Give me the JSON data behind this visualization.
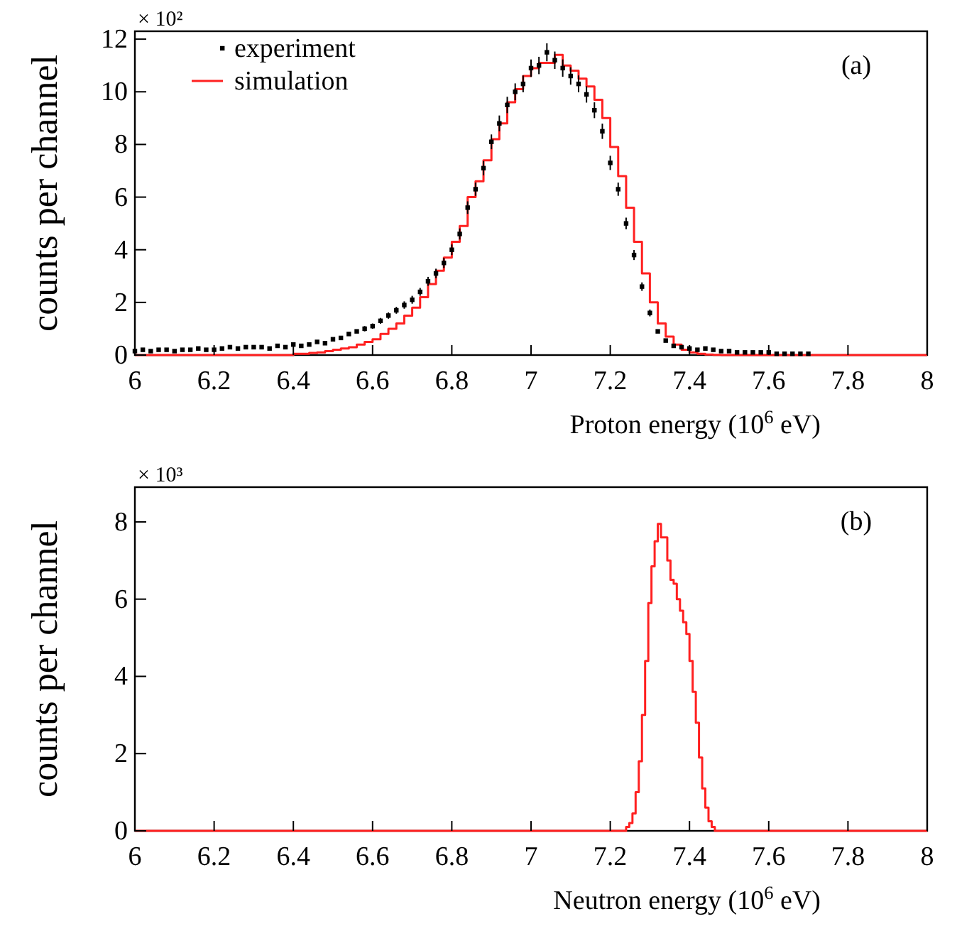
{
  "chart_data": [
    {
      "type": "scatter",
      "xlabel": "Proton energy (10$^{6}$ eV)",
      "ylabel": "counts per channel",
      "xlim": [
        6,
        8
      ],
      "ylim": [
        0,
        12.3
      ],
      "xticks": [
        6,
        6.2,
        6.4,
        6.6,
        6.8,
        7,
        7.2,
        7.4,
        7.6,
        7.8,
        8
      ],
      "yticks": [
        0,
        2,
        4,
        6,
        8,
        10,
        12
      ],
      "legend": "top left",
      "grid": false,
      "annotations": [
        "(a)",
        "× 10²"
      ],
      "series": [
        {
          "name": "experiment",
          "marker": "square",
          "color": "#000000",
          "x": [
            6.0,
            6.02,
            6.04,
            6.06,
            6.08,
            6.1,
            6.12,
            6.14,
            6.16,
            6.18,
            6.2,
            6.22,
            6.24,
            6.26,
            6.28,
            6.3,
            6.32,
            6.34,
            6.36,
            6.38,
            6.4,
            6.42,
            6.44,
            6.46,
            6.48,
            6.5,
            6.52,
            6.54,
            6.56,
            6.58,
            6.6,
            6.62,
            6.64,
            6.66,
            6.68,
            6.7,
            6.72,
            6.74,
            6.76,
            6.78,
            6.8,
            6.82,
            6.84,
            6.86,
            6.88,
            6.9,
            6.92,
            6.94,
            6.96,
            6.98,
            7.0,
            7.02,
            7.04,
            7.06,
            7.08,
            7.1,
            7.12,
            7.14,
            7.16,
            7.18,
            7.2,
            7.22,
            7.24,
            7.26,
            7.28,
            7.3,
            7.32,
            7.34,
            7.36,
            7.38,
            7.4,
            7.42,
            7.44,
            7.46,
            7.48,
            7.5,
            7.52,
            7.54,
            7.56,
            7.58,
            7.6,
            7.62,
            7.64,
            7.66,
            7.68,
            7.7
          ],
          "values": [
            0.15,
            0.2,
            0.15,
            0.2,
            0.2,
            0.15,
            0.2,
            0.2,
            0.25,
            0.2,
            0.2,
            0.25,
            0.3,
            0.25,
            0.3,
            0.3,
            0.3,
            0.25,
            0.35,
            0.3,
            0.4,
            0.35,
            0.4,
            0.5,
            0.45,
            0.6,
            0.65,
            0.8,
            0.9,
            1.0,
            1.1,
            1.3,
            1.5,
            1.7,
            1.9,
            2.1,
            2.4,
            2.8,
            3.1,
            3.5,
            4.0,
            4.6,
            5.6,
            6.3,
            7.1,
            8.1,
            8.8,
            9.5,
            10.0,
            10.3,
            10.9,
            11.0,
            11.5,
            11.2,
            10.9,
            10.6,
            10.3,
            9.9,
            9.3,
            8.5,
            7.3,
            6.3,
            5.0,
            3.8,
            2.6,
            1.6,
            0.9,
            0.55,
            0.35,
            0.3,
            0.25,
            0.2,
            0.25,
            0.2,
            0.15,
            0.15,
            0.1,
            0.1,
            0.1,
            0.1,
            0.1,
            0.05,
            0.05,
            0.05,
            0.05,
            0.05
          ],
          "errors": [
            null,
            null,
            null,
            null,
            null,
            null,
            null,
            null,
            null,
            null,
            null,
            null,
            null,
            null,
            null,
            null,
            null,
            null,
            null,
            null,
            null,
            null,
            null,
            null,
            null,
            null,
            null,
            null,
            null,
            0.1,
            0.1,
            0.11,
            0.12,
            0.13,
            0.14,
            0.15,
            0.15,
            0.17,
            0.18,
            0.19,
            0.2,
            0.21,
            0.24,
            0.25,
            0.27,
            0.28,
            0.3,
            0.31,
            0.32,
            0.32,
            0.33,
            0.33,
            0.34,
            0.33,
            0.33,
            0.33,
            0.32,
            0.31,
            0.3,
            0.29,
            0.27,
            0.25,
            0.22,
            0.19,
            0.16,
            0.13,
            null,
            null,
            null,
            null,
            null,
            null,
            null,
            null,
            null,
            null,
            null,
            null,
            null,
            null,
            null,
            null,
            null,
            null,
            null,
            null
          ]
        },
        {
          "name": "simulation",
          "type": "step",
          "color": "#ff2020",
          "x": [
            6.0,
            6.4,
            6.42,
            6.44,
            6.46,
            6.48,
            6.5,
            6.52,
            6.54,
            6.56,
            6.58,
            6.6,
            6.62,
            6.64,
            6.66,
            6.68,
            6.7,
            6.72,
            6.74,
            6.76,
            6.78,
            6.8,
            6.82,
            6.84,
            6.86,
            6.88,
            6.9,
            6.92,
            6.94,
            6.96,
            6.98,
            7.0,
            7.02,
            7.04,
            7.06,
            7.08,
            7.1,
            7.12,
            7.14,
            7.16,
            7.18,
            7.2,
            7.22,
            7.24,
            7.26,
            7.28,
            7.3,
            7.32,
            7.34,
            7.36,
            7.38,
            7.4,
            7.42,
            7.44,
            7.46,
            7.48,
            8.0
          ],
          "values": [
            0,
            0.05,
            0.05,
            0.08,
            0.1,
            0.15,
            0.2,
            0.25,
            0.3,
            0.4,
            0.5,
            0.6,
            0.8,
            1.0,
            1.2,
            1.5,
            1.8,
            2.2,
            2.7,
            3.2,
            3.7,
            4.3,
            4.9,
            6.0,
            6.6,
            7.4,
            8.2,
            8.8,
            9.6,
            10.1,
            10.6,
            10.9,
            11.1,
            11.1,
            11.4,
            11.0,
            10.8,
            10.5,
            10.2,
            9.7,
            9.0,
            7.9,
            6.8,
            5.6,
            4.3,
            3.1,
            2.0,
            1.2,
            0.7,
            0.4,
            0.2,
            0.1,
            0.05,
            0.02,
            0.01,
            0,
            0
          ]
        }
      ]
    },
    {
      "type": "step",
      "xlabel": "Neutron energy (10$^{6}$ eV)",
      "ylabel": "counts per channel",
      "xlim": [
        6,
        8
      ],
      "ylim": [
        0,
        8.9
      ],
      "xticks": [
        6,
        6.2,
        6.4,
        6.6,
        6.8,
        7,
        7.2,
        7.4,
        7.6,
        7.8,
        8
      ],
      "yticks": [
        0,
        2,
        4,
        6,
        8
      ],
      "grid": false,
      "annotations": [
        "(b)",
        "× 10³"
      ],
      "series": [
        {
          "color": "#ff2020",
          "x": [
            6.0,
            7.24,
            7.248,
            7.256,
            7.264,
            7.272,
            7.28,
            7.288,
            7.296,
            7.304,
            7.312,
            7.32,
            7.328,
            7.336,
            7.344,
            7.352,
            7.36,
            7.368,
            7.376,
            7.384,
            7.392,
            7.4,
            7.408,
            7.416,
            7.424,
            7.432,
            7.44,
            7.448,
            7.456,
            7.464,
            8.0
          ],
          "values": [
            0,
            0.1,
            0.2,
            0.45,
            1.0,
            1.8,
            3.0,
            4.4,
            5.9,
            6.85,
            7.5,
            7.95,
            7.6,
            7.6,
            7.0,
            6.5,
            6.4,
            6.0,
            5.7,
            5.4,
            5.1,
            4.4,
            3.6,
            2.8,
            1.9,
            1.1,
            0.6,
            0.25,
            0.1,
            0,
            0
          ]
        }
      ]
    }
  ]
}
